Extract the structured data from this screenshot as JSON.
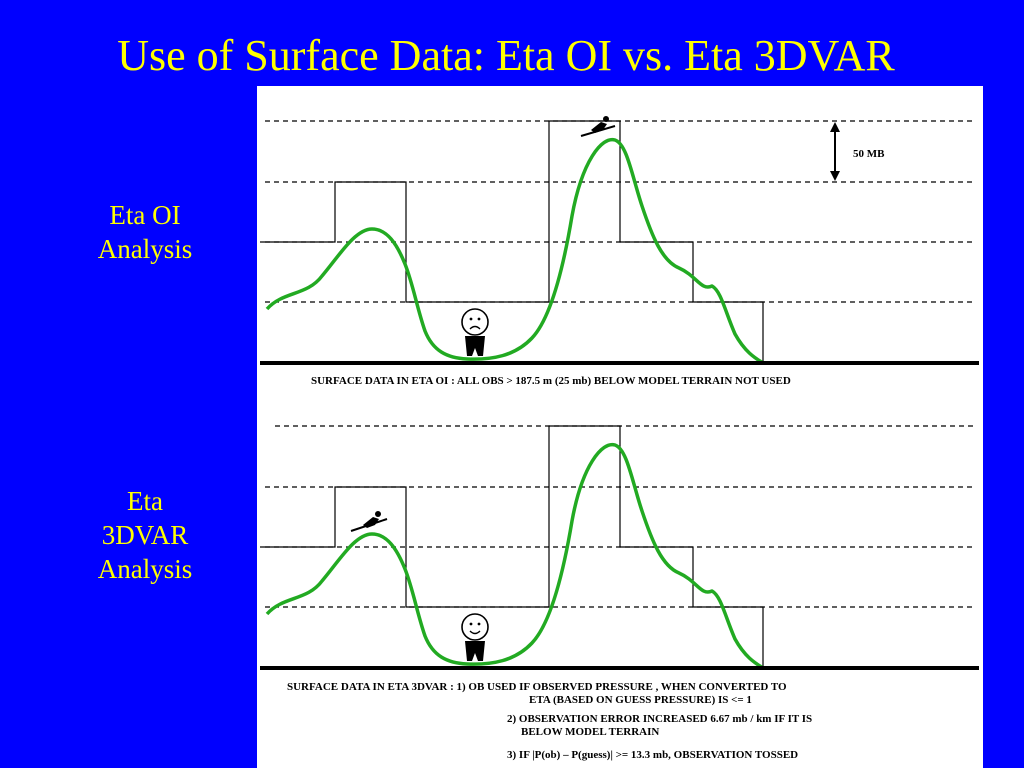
{
  "slide": {
    "title": "Use of Surface Data: Eta OI vs. Eta 3DVAR",
    "labels": {
      "oi": [
        "Eta OI",
        "Analysis"
      ],
      "threedvar": [
        "Eta",
        "3DVAR",
        "Analysis"
      ]
    }
  },
  "diagram": {
    "scale_label": "50 MB",
    "oi_caption": "SURFACE DATA IN ETA OI : ALL OBS > 187.5 m (25 mb) BELOW MODEL TERRAIN NOT USED",
    "threedvar_caption": [
      "SURFACE DATA IN ETA 3DVAR : 1) OB USED IF OBSERVED PRESSURE , WHEN CONVERTED TO",
      "ETA (BASED ON GUESS PRESSURE) IS <= 1",
      "2) OBSERVATION ERROR INCREASED  6.67 mb / km IF IT IS",
      "BELOW MODEL TERRAIN",
      "3) IF |P(ob) – P(guess)| >= 13.3 mb, OBSERVATION TOSSED"
    ],
    "terrain_color": "#22aa22",
    "oi_face": "sad",
    "threedvar_face": "happy"
  }
}
